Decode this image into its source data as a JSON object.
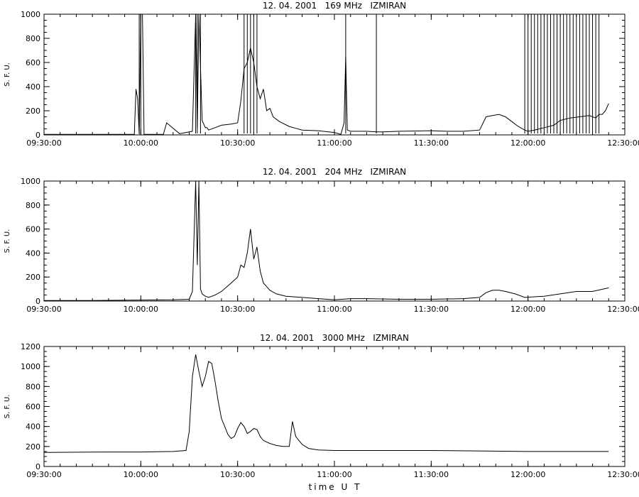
{
  "x_axis_label": "time U T",
  "chart_data": [
    {
      "type": "line",
      "title": "12. 04. 2001   169 MHz   IZMIRAN",
      "ylabel": "S. F. U.",
      "xlabel": "",
      "ylim": [
        0,
        1000
      ],
      "xlim": [
        "09:30:00",
        "12:30:00"
      ],
      "xticks": [
        "09:30:00",
        "10:00:00",
        "10:30:00",
        "11:00:00",
        "11:30:00",
        "12:00:00",
        "12:30:00"
      ],
      "yticks": [
        0,
        200,
        400,
        600,
        800,
        1000
      ],
      "series": [
        {
          "x": [
            "09:30:00",
            "09:58:00",
            "09:58:30",
            "09:59:00",
            "09:59:30",
            "10:00:00",
            "10:00:30",
            "10:01:00",
            "10:02:00",
            "10:07:00",
            "10:08:00",
            "10:12:00",
            "10:16:00",
            "10:17:00",
            "10:17:30",
            "10:18:00",
            "10:19:00",
            "10:20:00",
            "10:20:30",
            "10:21:00",
            "10:23:00",
            "10:25:00",
            "10:28:00",
            "10:30:00",
            "10:31:00",
            "10:32:00",
            "10:33:00",
            "10:34:00",
            "10:35:00",
            "10:36:00",
            "10:37:00",
            "10:38:00",
            "10:39:00",
            "10:40:00",
            "10:41:00",
            "10:43:00",
            "10:46:00",
            "10:48:00",
            "10:50:00",
            "10:55:00",
            "11:00:00",
            "11:02:00",
            "11:03:00",
            "11:03:30",
            "11:04:00",
            "11:05:00",
            "11:10:00",
            "11:13:00",
            "11:15:00",
            "11:20:00",
            "11:30:00",
            "11:35:00",
            "11:40:00",
            "11:45:00",
            "11:47:00",
            "11:49:00",
            "11:51:00",
            "11:53:00",
            "11:55:00",
            "11:57:00",
            "11:59:00",
            "12:00:00",
            "12:02:00",
            "12:05:00",
            "12:08:00",
            "12:10:00",
            "12:13:00",
            "12:16:00",
            "12:19:00",
            "12:21:00",
            "12:22:00",
            "12:23:00",
            "12:24:00",
            "12:25:00"
          ],
          "y": [
            5,
            5,
            380,
            300,
            5,
            1000,
            1000,
            5,
            5,
            5,
            100,
            10,
            30,
            1000,
            60,
            1000,
            120,
            60,
            60,
            40,
            60,
            80,
            90,
            100,
            280,
            550,
            600,
            720,
            600,
            400,
            300,
            380,
            200,
            220,
            150,
            110,
            70,
            55,
            40,
            35,
            20,
            5,
            100,
            650,
            40,
            30,
            30,
            25,
            25,
            30,
            35,
            30,
            30,
            40,
            150,
            160,
            170,
            150,
            110,
            70,
            40,
            30,
            40,
            60,
            80,
            120,
            140,
            150,
            160,
            140,
            170,
            170,
            200,
            260
          ]
        }
      ],
      "spikes": [
        "09:59:30",
        "10:00:00",
        "10:17:00",
        "10:17:30",
        "10:18:30",
        "10:32:00",
        "10:33:00",
        "10:34:00",
        "10:35:00",
        "10:36:00",
        "11:03:30",
        "11:13:00",
        "11:59:00",
        "12:00:00",
        "12:01:00",
        "12:02:00",
        "12:03:00",
        "12:04:00",
        "12:05:00",
        "12:06:00",
        "12:07:00",
        "12:08:00",
        "12:09:00",
        "12:10:00",
        "12:11:00",
        "12:12:00",
        "12:13:00",
        "12:14:00",
        "12:15:00",
        "12:16:00",
        "12:17:00",
        "12:18:00",
        "12:19:00",
        "12:20:00",
        "12:21:00",
        "12:22:00"
      ]
    },
    {
      "type": "line",
      "title": "12. 04. 2001   204 MHz   IZMIRAN",
      "ylabel": "S. F. U.",
      "xlabel": "",
      "ylim": [
        0,
        1000
      ],
      "xlim": [
        "09:30:00",
        "12:30:00"
      ],
      "xticks": [
        "09:30:00",
        "10:00:00",
        "10:30:00",
        "11:00:00",
        "11:30:00",
        "12:00:00",
        "12:30:00"
      ],
      "yticks": [
        0,
        200,
        400,
        600,
        800,
        1000
      ],
      "series": [
        {
          "x": [
            "09:30:00",
            "09:45:00",
            "10:00:00",
            "10:10:00",
            "10:15:00",
            "10:16:00",
            "10:17:00",
            "10:17:30",
            "10:18:00",
            "10:18:30",
            "10:19:00",
            "10:20:00",
            "10:21:00",
            "10:23:00",
            "10:25:00",
            "10:28:00",
            "10:30:00",
            "10:31:00",
            "10:32:00",
            "10:33:00",
            "10:34:00",
            "10:35:00",
            "10:36:00",
            "10:37:00",
            "10:38:00",
            "10:39:00",
            "10:40:00",
            "10:42:00",
            "10:45:00",
            "10:50:00",
            "10:55:00",
            "11:00:00",
            "11:05:00",
            "11:10:00",
            "11:20:00",
            "11:30:00",
            "11:40:00",
            "11:45:00",
            "11:47:00",
            "11:49:00",
            "11:51:00",
            "11:53:00",
            "11:56:00",
            "11:59:00",
            "12:05:00",
            "12:10:00",
            "12:15:00",
            "12:20:00",
            "12:25:00"
          ],
          "y": [
            5,
            5,
            8,
            10,
            15,
            80,
            1000,
            300,
            1000,
            100,
            60,
            40,
            30,
            50,
            80,
            150,
            200,
            300,
            280,
            400,
            600,
            350,
            450,
            250,
            150,
            120,
            90,
            60,
            40,
            30,
            20,
            10,
            20,
            20,
            15,
            15,
            20,
            30,
            70,
            90,
            90,
            80,
            60,
            30,
            40,
            60,
            80,
            80,
            110
          ]
        }
      ],
      "spikes": []
    },
    {
      "type": "line",
      "title": "12. 04. 2001   3000 MHz   IZMIRAN",
      "ylabel": "S. F. U.",
      "xlabel": "time U T",
      "ylim": [
        0,
        1200
      ],
      "xlim": [
        "09:30:00",
        "12:30:00"
      ],
      "xticks": [
        "09:30:00",
        "10:00:00",
        "10:30:00",
        "11:00:00",
        "11:30:00",
        "12:00:00",
        "12:30:00"
      ],
      "yticks": [
        0,
        200,
        400,
        600,
        800,
        1000,
        1200
      ],
      "series": [
        {
          "x": [
            "09:30:00",
            "09:50:00",
            "10:00:00",
            "10:10:00",
            "10:14:00",
            "10:15:00",
            "10:16:00",
            "10:17:00",
            "10:18:00",
            "10:19:00",
            "10:20:00",
            "10:21:00",
            "10:22:00",
            "10:23:00",
            "10:24:00",
            "10:25:00",
            "10:26:00",
            "10:27:00",
            "10:28:00",
            "10:29:00",
            "10:30:00",
            "10:31:00",
            "10:32:00",
            "10:33:00",
            "10:34:00",
            "10:35:00",
            "10:36:00",
            "10:37:00",
            "10:38:00",
            "10:40:00",
            "10:42:00",
            "10:44:00",
            "10:46:00",
            "10:47:00",
            "10:48:00",
            "10:49:00",
            "10:50:00",
            "10:52:00",
            "10:55:00",
            "11:00:00",
            "11:30:00",
            "12:00:00",
            "12:25:00"
          ],
          "y": [
            140,
            145,
            145,
            150,
            160,
            350,
            900,
            1120,
            950,
            800,
            900,
            1050,
            1030,
            850,
            650,
            480,
            400,
            320,
            280,
            300,
            380,
            440,
            400,
            330,
            350,
            380,
            370,
            300,
            260,
            230,
            210,
            200,
            200,
            450,
            300,
            260,
            220,
            180,
            165,
            160,
            160,
            150,
            150
          ]
        }
      ],
      "spikes": []
    }
  ]
}
